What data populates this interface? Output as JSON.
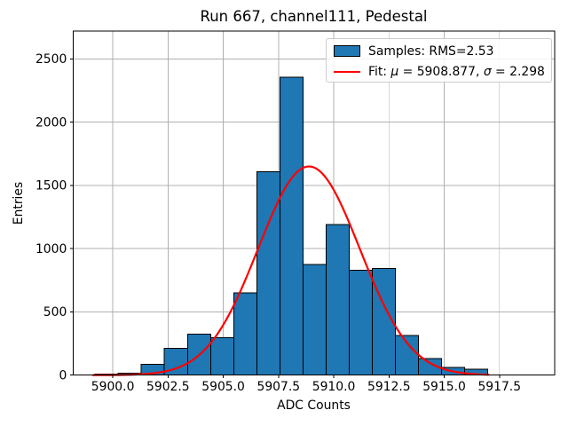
{
  "chart": {
    "title": "Run 667, channel111, Pedestal",
    "xlabel": "ADC Counts",
    "ylabel": "Entries"
  },
  "legend": {
    "samples_label": "Samples: RMS=2.53",
    "fit_prefix": "Fit: ",
    "mu_symbol": "μ",
    "fit_mid": " = 5908.877, ",
    "sigma_symbol": "σ",
    "fit_suffix": " = 2.298"
  },
  "chart_data": {
    "type": "bar",
    "subtype": "histogram_with_gaussian_fit",
    "title": "Run 667, channel111, Pedestal",
    "xlabel": "ADC Counts",
    "ylabel": "Entries",
    "xlim": [
      5898.2,
      5920.0
    ],
    "ylim": [
      0,
      2720
    ],
    "xticks": [
      5900.0,
      5902.5,
      5905.0,
      5907.5,
      5910.0,
      5912.5,
      5915.0,
      5917.5
    ],
    "xtick_labels": [
      "5900.0",
      "5902.5",
      "5905.0",
      "5907.5",
      "5910.0",
      "5912.5",
      "5915.0",
      "5917.5"
    ],
    "yticks": [
      0,
      500,
      1000,
      1500,
      2000,
      2500
    ],
    "ytick_labels": [
      "0",
      "500",
      "1000",
      "1500",
      "2000",
      "2500"
    ],
    "grid": true,
    "legend_position": "upper right",
    "bar_color": "#1f77b4",
    "bar_edge_color": "#000000",
    "fit_color": "#ff0000",
    "grid_color": "#b0b0b0",
    "spine_color": "#000000",
    "bin_start": 5899.2,
    "bin_width": 1.045,
    "counts": [
      8,
      15,
      85,
      212,
      325,
      295,
      650,
      1608,
      2355,
      875,
      1190,
      830,
      845,
      315,
      132,
      62,
      46
    ],
    "series": [
      {
        "name": "Samples: RMS=2.53",
        "type": "histogram",
        "rms": 2.53
      },
      {
        "name": "Fit: μ = 5908.877, σ = 2.298",
        "type": "line",
        "fit": {
          "mu": 5908.877,
          "sigma": 2.298,
          "amplitude": 1650,
          "x_min": 5899.1,
          "x_max": 5917.0
        }
      }
    ]
  }
}
